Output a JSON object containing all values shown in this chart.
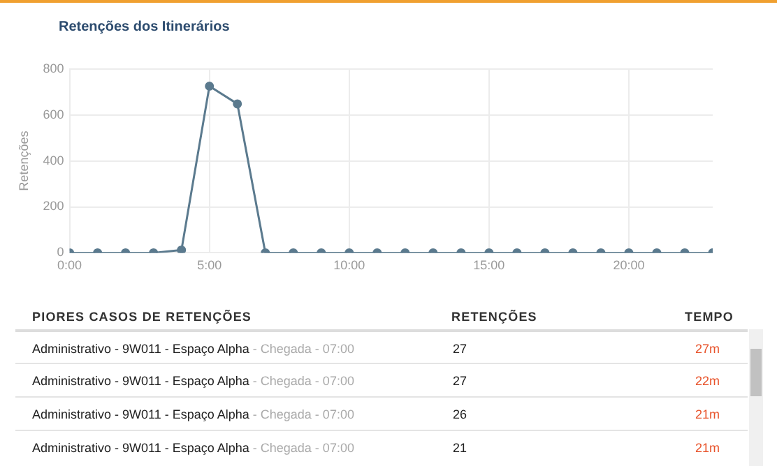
{
  "chart_data": [
    {
      "type": "line",
      "title": "Retenções dos Itinerários",
      "ylabel": "Retenções",
      "x": [
        0,
        1,
        2,
        3,
        4,
        5,
        6,
        7,
        8,
        9,
        10,
        11,
        12,
        13,
        14,
        15,
        16,
        17,
        18,
        19,
        20,
        21,
        22,
        23
      ],
      "series": [
        {
          "color": "#5b7a8e",
          "values": [
            0,
            0,
            0,
            0,
            12,
            725,
            648,
            0,
            0,
            0,
            0,
            0,
            0,
            0,
            0,
            0,
            0,
            0,
            0,
            0,
            0,
            0,
            0,
            0
          ]
        }
      ],
      "xlim": [
        0,
        23
      ],
      "xticks": [
        {
          "value": 0,
          "label": "0:00"
        },
        {
          "value": 5,
          "label": "5:00"
        },
        {
          "value": 10,
          "label": "10:00"
        },
        {
          "value": 15,
          "label": "15:00"
        },
        {
          "value": 20,
          "label": "20:00"
        }
      ],
      "ylim": [
        0,
        800
      ],
      "yticks": [
        0,
        200,
        400,
        600,
        800
      ],
      "grid": true,
      "legend": false,
      "marker": "circle"
    },
    {
      "type": "other",
      "annotations": [
        "PIORES CASOS DE RETENÇÕES",
        "RETENÇÕES",
        "TEMPO",
        "Administrativo - 9W011 - Espaço Alpha",
        "- Chegada - 07:00",
        "27",
        "27m",
        "Administrativo - 9W011 - Espaço Alpha",
        "- Chegada - 07:00",
        "27",
        "22m",
        "Administrativo - 9W011 - Espaço Alpha",
        "- Chegada - 07:00",
        "26",
        "21m",
        "Administrativo - 9W011 - Espaço Alpha",
        "- Chegada - 07:00",
        "21",
        "21m"
      ]
    }
  ]
}
